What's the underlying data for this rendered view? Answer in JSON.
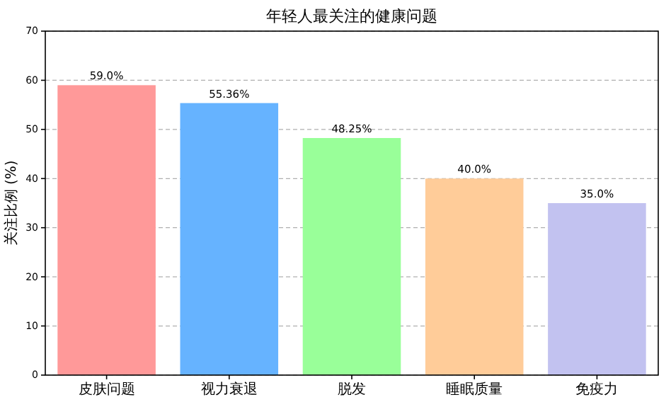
{
  "chart_data": {
    "type": "bar",
    "title": "年轻人最关注的健康问题",
    "ylabel": "关注比例 (%)",
    "categories": [
      "皮肤问题",
      "视力衰退",
      "脱发",
      "睡眠质量",
      "免疫力"
    ],
    "values": [
      59.0,
      55.36,
      48.25,
      40.0,
      35.0
    ],
    "colors": [
      "#ff9999",
      "#66b3ff",
      "#99ff99",
      "#ffcc99",
      "#c2c2f0"
    ],
    "value_labels": [
      "59.0%",
      "55.36%",
      "48.25%",
      "40.0%",
      "35.0%"
    ],
    "ylim": [
      0,
      70
    ],
    "yticks": [
      0,
      10,
      20,
      30,
      40,
      50,
      60,
      70
    ],
    "grid": "y"
  }
}
